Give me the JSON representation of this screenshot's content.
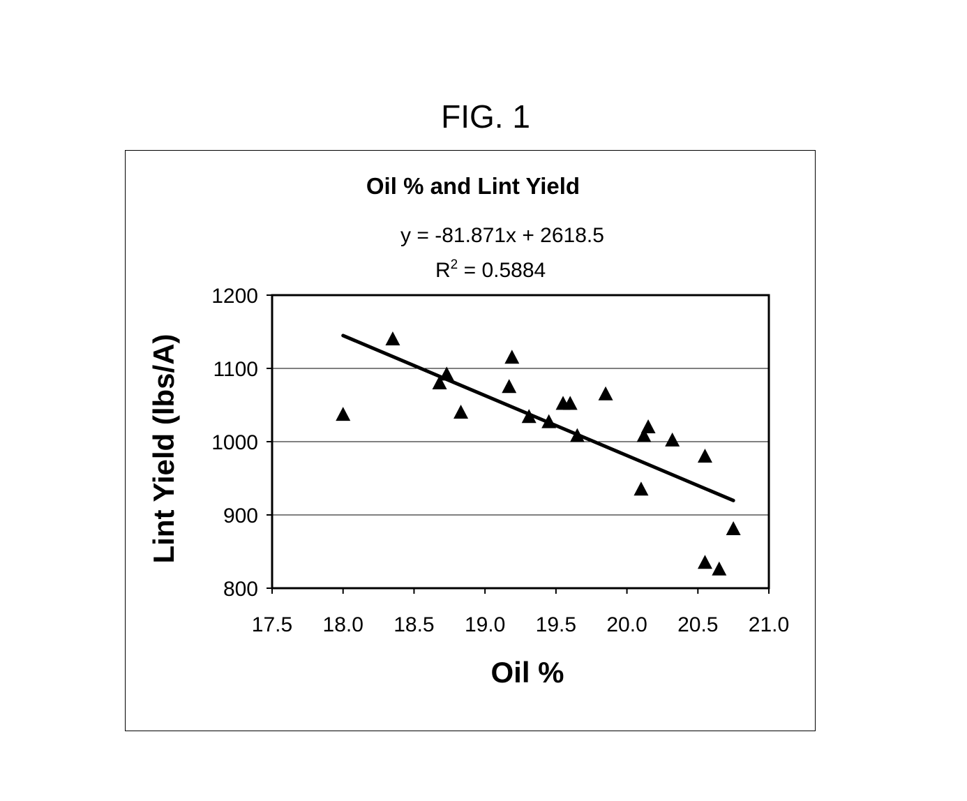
{
  "figure_label": "FIG. 1",
  "chart_data": {
    "type": "scatter",
    "title": "Oil % and Lint Yield",
    "xlabel": "Oil %",
    "ylabel": "Lint Yield (lbs/A)",
    "xlim": [
      17.5,
      21.0
    ],
    "ylim": [
      800,
      1200
    ],
    "x_ticks": [
      "17.5",
      "18.0",
      "18.5",
      "19.0",
      "19.5",
      "20.0",
      "20.5",
      "21.0"
    ],
    "y_ticks": [
      "800",
      "900",
      "1000",
      "1100",
      "1200"
    ],
    "grid": "horizontal",
    "marker": "triangle",
    "points": [
      {
        "x": 18.0,
        "y": 1037
      },
      {
        "x": 18.35,
        "y": 1140
      },
      {
        "x": 18.68,
        "y": 1080
      },
      {
        "x": 18.73,
        "y": 1092
      },
      {
        "x": 18.83,
        "y": 1040
      },
      {
        "x": 19.17,
        "y": 1075
      },
      {
        "x": 19.19,
        "y": 1115
      },
      {
        "x": 19.31,
        "y": 1034
      },
      {
        "x": 19.45,
        "y": 1027
      },
      {
        "x": 19.55,
        "y": 1052
      },
      {
        "x": 19.6,
        "y": 1052
      },
      {
        "x": 19.65,
        "y": 1008
      },
      {
        "x": 19.85,
        "y": 1065
      },
      {
        "x": 20.1,
        "y": 935
      },
      {
        "x": 20.12,
        "y": 1008
      },
      {
        "x": 20.15,
        "y": 1020
      },
      {
        "x": 20.32,
        "y": 1002
      },
      {
        "x": 20.55,
        "y": 980
      },
      {
        "x": 20.55,
        "y": 835
      },
      {
        "x": 20.65,
        "y": 826
      },
      {
        "x": 20.75,
        "y": 881
      }
    ],
    "trendline": {
      "x_start": 18.0,
      "x_end": 20.75,
      "equation": "y = -81.871x + 2618.5",
      "r_squared_label": "R",
      "r_squared_exp": "2",
      "r_squared_value": " = 0.5884",
      "slope": -81.871,
      "intercept": 2618.5
    }
  }
}
